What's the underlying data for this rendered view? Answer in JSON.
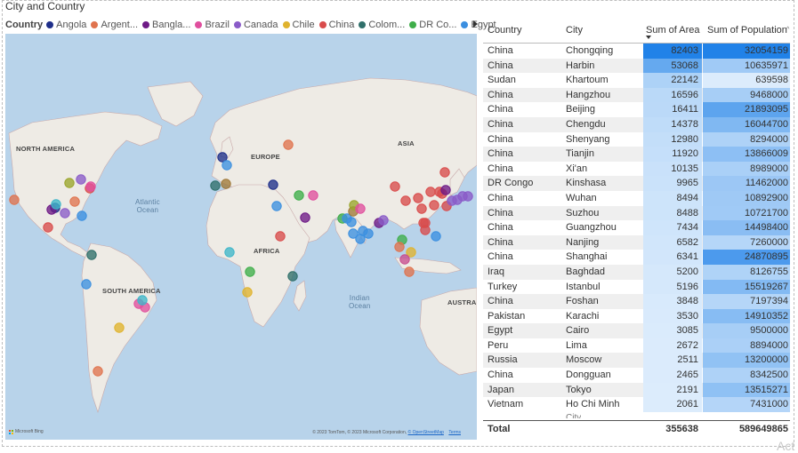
{
  "visual": {
    "title": "City and Country"
  },
  "legend": {
    "label": "Country",
    "items": [
      {
        "name": "Angola",
        "color": "#1f2f8a"
      },
      {
        "name": "Argent...",
        "color": "#e0734e"
      },
      {
        "name": "Bangla...",
        "color": "#6e1a86"
      },
      {
        "name": "Brazil",
        "color": "#e04f9e"
      },
      {
        "name": "Canada",
        "color": "#8a5bc8"
      },
      {
        "name": "Chile",
        "color": "#e0b32e"
      },
      {
        "name": "China",
        "color": "#d94c4c"
      },
      {
        "name": "Colom...",
        "color": "#2f6f6a"
      },
      {
        "name": "DR Co...",
        "color": "#3fae4a"
      },
      {
        "name": "Egypt",
        "color": "#3b8fe0"
      }
    ]
  },
  "map": {
    "labels": {
      "north_america": "NORTH AMERICA",
      "europe": "EUROPE",
      "asia": "ASIA",
      "africa": "AFRICA",
      "south_america": "SOUTH AMERICA",
      "austra": "AUSTRA",
      "atlantic": "Atlantic",
      "atlantic2": "Ocean",
      "indian": "Indian",
      "indian2": "Ocean"
    },
    "logo_text": "Microsoft Bing",
    "credits": "© 2023 TomTom, © 2023 Microsoft Corporation,",
    "credits_link": "© OpenStreetMap",
    "terms": "Terms",
    "colors": {
      "ocean": "#b8d3ea",
      "land": "#eeebe5",
      "border": "#c9a9a9"
    }
  },
  "table": {
    "headers": [
      "Country",
      "City",
      "Sum of Area",
      "Sum of Population"
    ],
    "rows": [
      {
        "country": "China",
        "city": "Chongqing",
        "area": "82403",
        "population": "32054159"
      },
      {
        "country": "China",
        "city": "Harbin",
        "area": "53068",
        "population": "10635971"
      },
      {
        "country": "Sudan",
        "city": "Khartoum",
        "area": "22142",
        "population": "639598"
      },
      {
        "country": "China",
        "city": "Hangzhou",
        "area": "16596",
        "population": "9468000"
      },
      {
        "country": "China",
        "city": "Beijing",
        "area": "16411",
        "population": "21893095"
      },
      {
        "country": "China",
        "city": "Chengdu",
        "area": "14378",
        "population": "16044700"
      },
      {
        "country": "China",
        "city": "Shenyang",
        "area": "12980",
        "population": "8294000"
      },
      {
        "country": "China",
        "city": "Tianjin",
        "area": "11920",
        "population": "13866009"
      },
      {
        "country": "China",
        "city": "Xi'an",
        "area": "10135",
        "population": "8989000"
      },
      {
        "country": "DR Congo",
        "city": "Kinshasa",
        "area": "9965",
        "population": "11462000"
      },
      {
        "country": "China",
        "city": "Wuhan",
        "area": "8494",
        "population": "10892900"
      },
      {
        "country": "China",
        "city": "Suzhou",
        "area": "8488",
        "population": "10721700"
      },
      {
        "country": "China",
        "city": "Guangzhou",
        "area": "7434",
        "population": "14498400"
      },
      {
        "country": "China",
        "city": "Nanjing",
        "area": "6582",
        "population": "7260000"
      },
      {
        "country": "China",
        "city": "Shanghai",
        "area": "6341",
        "population": "24870895"
      },
      {
        "country": "Iraq",
        "city": "Baghdad",
        "area": "5200",
        "population": "8126755"
      },
      {
        "country": "Turkey",
        "city": "Istanbul",
        "area": "5196",
        "population": "15519267"
      },
      {
        "country": "China",
        "city": "Foshan",
        "area": "3848",
        "population": "7197394"
      },
      {
        "country": "Pakistan",
        "city": "Karachi",
        "area": "3530",
        "population": "14910352"
      },
      {
        "country": "Egypt",
        "city": "Cairo",
        "area": "3085",
        "population": "9500000"
      },
      {
        "country": "Peru",
        "city": "Lima",
        "area": "2672",
        "population": "8894000"
      },
      {
        "country": "Russia",
        "city": "Moscow",
        "area": "2511",
        "population": "13200000"
      },
      {
        "country": "China",
        "city": "Dongguan",
        "area": "2465",
        "population": "8342500"
      },
      {
        "country": "Japan",
        "city": "Tokyo",
        "area": "2191",
        "population": "13515271"
      },
      {
        "country": "Vietnam",
        "city": "Ho Chi Minh",
        "area": "2061",
        "population": "7431000"
      }
    ],
    "overflow_text": "City",
    "total": {
      "label": "Total",
      "area": "355638",
      "population": "589649865"
    },
    "sort": "Sum of Area descending"
  },
  "watermark": "Act"
}
